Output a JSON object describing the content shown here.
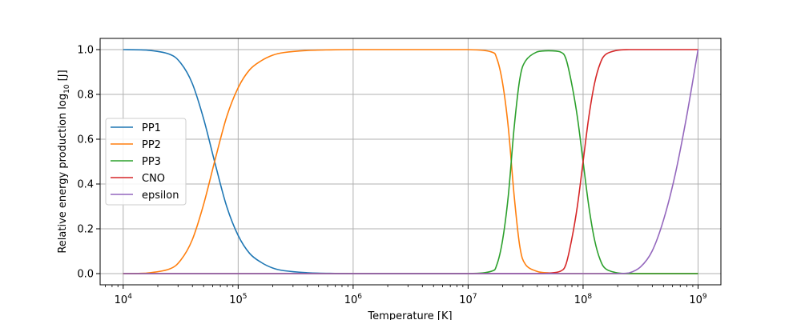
{
  "chart_data": {
    "type": "line",
    "title": "",
    "xlabel": "Temperature [K]",
    "ylabel_main": "Relative energy production log",
    "ylabel_sub": "10",
    "ylabel_unit": " [J]",
    "xscale": "log",
    "xlim": [
      6300,
      1580000000
    ],
    "ylim": [
      -0.05,
      1.05
    ],
    "grid": true,
    "legend_position": "center-left",
    "x_ticks": [
      {
        "exp": "4",
        "value": 10000
      },
      {
        "exp": "5",
        "value": 100000
      },
      {
        "exp": "6",
        "value": 1000000
      },
      {
        "exp": "7",
        "value": 10000000
      },
      {
        "exp": "8",
        "value": 100000000
      },
      {
        "exp": "9",
        "value": 1000000000
      }
    ],
    "x_tick_base": "10",
    "y_ticks": [
      "0.0",
      "0.2",
      "0.4",
      "0.6",
      "0.8",
      "1.0"
    ],
    "x_sample_exps": [
      4.0,
      4.2,
      4.4,
      4.5,
      4.6,
      4.7,
      4.8,
      4.9,
      5.0,
      5.1,
      5.2,
      5.3,
      5.4,
      5.6,
      5.8,
      6.0,
      6.5,
      7.0,
      7.2,
      7.25,
      7.3,
      7.35,
      7.4,
      7.45,
      7.5,
      7.6,
      7.7,
      7.8,
      7.85,
      7.9,
      7.95,
      8.0,
      8.05,
      8.1,
      8.15,
      8.2,
      8.3,
      8.4,
      8.5,
      8.6,
      8.7,
      8.8,
      8.9,
      9.0
    ],
    "series": [
      {
        "name": "PP1",
        "color": "#1f77b4",
        "values": [
          1.0,
          0.998,
          0.98,
          0.94,
          0.85,
          0.69,
          0.49,
          0.3,
          0.17,
          0.09,
          0.05,
          0.025,
          0.013,
          0.004,
          0.001,
          0.0,
          0.0,
          0.0,
          0.0,
          0.0,
          0.0,
          0.0,
          0.0,
          0.0,
          0.0,
          0.0,
          0.0,
          0.0,
          0.0,
          0.0,
          0.0,
          0.0,
          0.0,
          0.0,
          0.0,
          0.0,
          0.0,
          0.0,
          0.0,
          0.0,
          0.0,
          0.0,
          0.0,
          0.0
        ]
      },
      {
        "name": "PP2",
        "color": "#ff7f0e",
        "values": [
          0.0,
          0.002,
          0.02,
          0.06,
          0.15,
          0.31,
          0.51,
          0.7,
          0.83,
          0.91,
          0.95,
          0.975,
          0.987,
          0.996,
          0.999,
          1.0,
          1.0,
          1.0,
          0.99,
          0.96,
          0.85,
          0.65,
          0.35,
          0.12,
          0.04,
          0.01,
          0.003,
          0.0,
          0.0,
          0.0,
          0.0,
          0.0,
          0.0,
          0.0,
          0.0,
          0.0,
          0.0,
          0.0,
          0.0,
          0.0,
          0.0,
          0.0,
          0.0,
          0.0
        ]
      },
      {
        "name": "PP3",
        "color": "#2ca02c",
        "values": [
          0.0,
          0.0,
          0.0,
          0.0,
          0.0,
          0.0,
          0.0,
          0.0,
          0.0,
          0.0,
          0.0,
          0.0,
          0.0,
          0.0,
          0.0,
          0.0,
          0.0,
          0.0,
          0.01,
          0.04,
          0.15,
          0.35,
          0.65,
          0.87,
          0.95,
          0.99,
          0.995,
          0.99,
          0.96,
          0.85,
          0.7,
          0.5,
          0.3,
          0.15,
          0.06,
          0.02,
          0.003,
          0.0,
          0.0,
          0.0,
          0.0,
          0.0,
          0.0,
          0.0
        ]
      },
      {
        "name": "CNO",
        "color": "#d62728",
        "values": [
          0.0,
          0.0,
          0.0,
          0.0,
          0.0,
          0.0,
          0.0,
          0.0,
          0.0,
          0.0,
          0.0,
          0.0,
          0.0,
          0.0,
          0.0,
          0.0,
          0.0,
          0.0,
          0.0,
          0.0,
          0.0,
          0.0,
          0.0,
          0.0,
          0.0,
          0.0,
          0.002,
          0.01,
          0.04,
          0.15,
          0.3,
          0.5,
          0.7,
          0.85,
          0.94,
          0.98,
          0.997,
          1.0,
          1.0,
          1.0,
          1.0,
          1.0,
          1.0,
          1.0
        ]
      },
      {
        "name": "epsilon",
        "color": "#9467bd",
        "values": [
          0.0,
          0.0,
          0.0,
          0.0,
          0.0,
          0.0,
          0.0,
          0.0,
          0.0,
          0.0,
          0.0,
          0.0,
          0.0,
          0.0,
          0.0,
          0.0,
          0.0,
          0.0,
          0.0,
          0.0,
          0.0,
          0.0,
          0.0,
          0.0,
          0.0,
          0.0,
          0.0,
          0.0,
          0.0,
          0.0,
          0.0,
          0.0,
          0.0,
          0.0,
          0.0,
          0.0,
          0.0,
          0.003,
          0.03,
          0.1,
          0.24,
          0.44,
          0.7,
          1.0
        ]
      }
    ]
  }
}
